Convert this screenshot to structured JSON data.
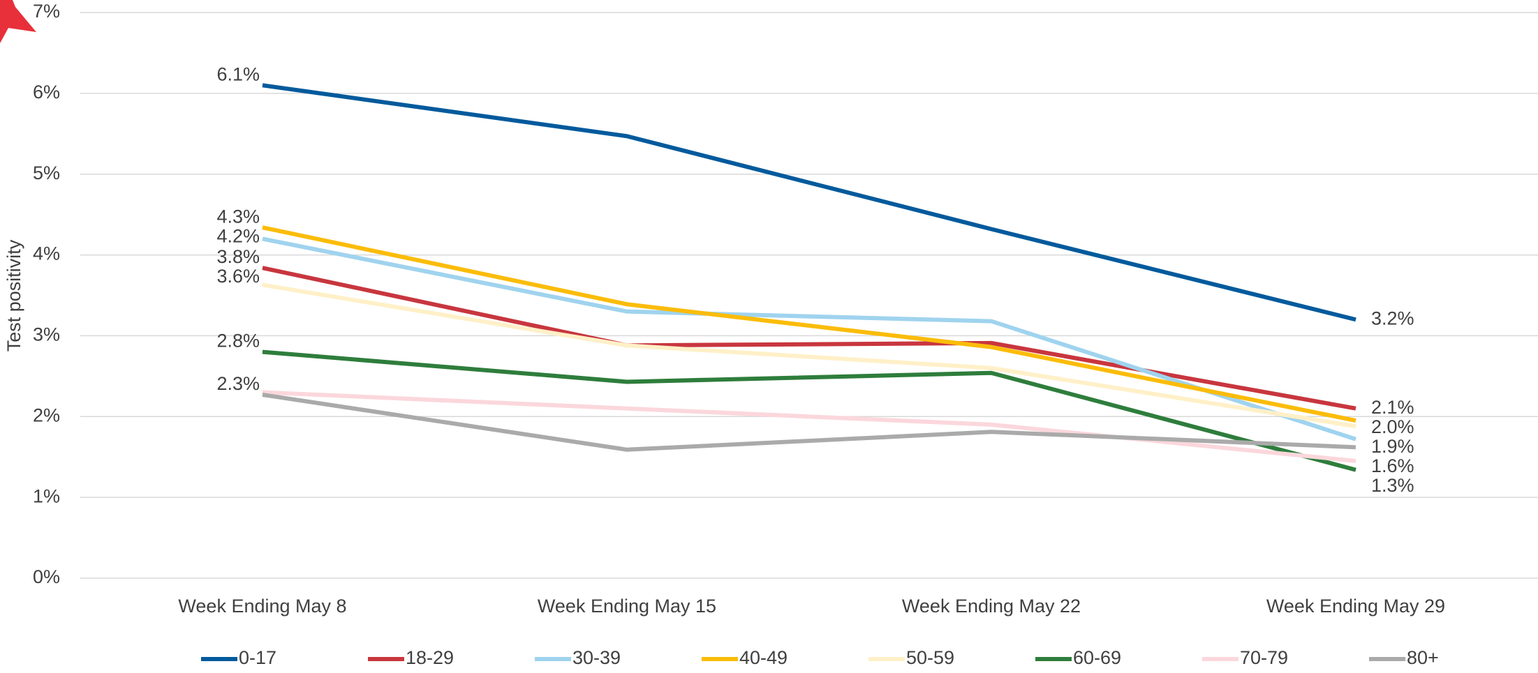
{
  "chart_data": {
    "type": "line",
    "y_axis_label": "Test positivity",
    "categories": [
      "Week Ending May 8",
      "Week Ending May 15",
      "Week Ending May 22",
      "Week Ending May 29"
    ],
    "ylim": [
      0,
      7
    ],
    "yticks": [
      {
        "value": 0,
        "label": "0%"
      },
      {
        "value": 1,
        "label": "1%"
      },
      {
        "value": 2,
        "label": "2%"
      },
      {
        "value": 3,
        "label": "3%"
      },
      {
        "value": 4,
        "label": "4%"
      },
      {
        "value": 5,
        "label": "5%"
      },
      {
        "value": 6,
        "label": "6%"
      },
      {
        "value": 7,
        "label": "7%"
      }
    ],
    "grid": true,
    "legend": "bottom",
    "series": [
      {
        "name": "0-17",
        "color": "#005a9c",
        "values": [
          6.1,
          5.47,
          4.32,
          3.2
        ],
        "value_labels": [
          "6.1%",
          null,
          null,
          "3.2%"
        ]
      },
      {
        "name": "18-29",
        "color": "#c8363e",
        "values": [
          3.84,
          2.88,
          2.91,
          2.1
        ],
        "value_labels": [
          "3.8%",
          null,
          null,
          "2.1%"
        ]
      },
      {
        "name": "30-39",
        "color": "#9fd3ee",
        "values": [
          4.2,
          3.3,
          3.18,
          1.72
        ],
        "value_labels": [
          "4.2%",
          null,
          null,
          null
        ]
      },
      {
        "name": "40-49",
        "color": "#fbbc09",
        "values": [
          4.34,
          3.39,
          2.86,
          1.95
        ],
        "value_labels": [
          "4.3%",
          null,
          null,
          "2.0%"
        ]
      },
      {
        "name": "50-59",
        "color": "#fff0c8",
        "values": [
          3.63,
          2.88,
          2.6,
          1.88
        ],
        "value_labels": [
          "3.6%",
          null,
          null,
          "1.9%"
        ]
      },
      {
        "name": "60-69",
        "color": "#2e7d3c",
        "values": [
          2.8,
          2.43,
          2.54,
          1.34
        ],
        "value_labels": [
          "2.8%",
          null,
          null,
          "1.3%"
        ]
      },
      {
        "name": "70-79",
        "color": "#fbd7dc",
        "values": [
          2.3,
          2.1,
          1.9,
          1.45
        ],
        "value_labels": [
          null,
          null,
          null,
          null
        ]
      },
      {
        "name": "80+",
        "color": "#aaaaaa",
        "values": [
          2.27,
          1.59,
          1.81,
          1.62
        ],
        "value_labels": [
          "2.3%",
          null,
          null,
          "1.6%"
        ]
      }
    ]
  }
}
